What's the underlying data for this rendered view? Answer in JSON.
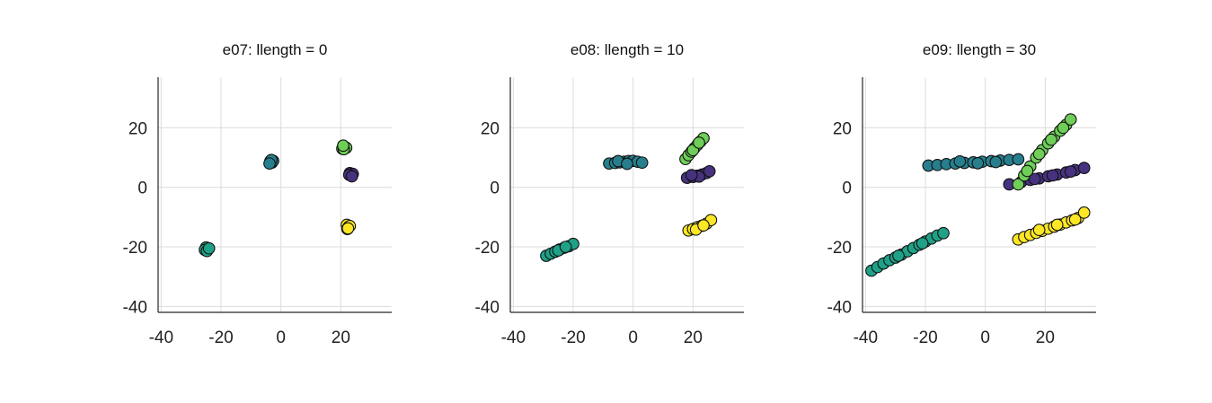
{
  "chart_data": [
    {
      "type": "scatter",
      "title": "e07: llength = 0",
      "xlabel": "",
      "ylabel": "",
      "xlim": [
        -41,
        37
      ],
      "ylim": [
        -42,
        37
      ],
      "xticks": [
        -40,
        -20,
        0,
        20
      ],
      "yticks": [
        -40,
        -20,
        0,
        20
      ],
      "grid": true,
      "series": [
        {
          "color": "#46327e",
          "x": [
            23.0,
            23.5,
            24.0,
            22.8,
            23.7
          ],
          "y": [
            4.8,
            4.0,
            4.5,
            4.2,
            3.7
          ]
        },
        {
          "color": "#277f8e",
          "x": [
            -3.5,
            -3.0,
            -2.6,
            -3.2,
            -3.8
          ],
          "y": [
            8.8,
            8.3,
            8.9,
            9.2,
            8.0
          ]
        },
        {
          "color": "#1fa187",
          "x": [
            -25.0,
            -24.3,
            -25.4,
            -24.7,
            -24.0
          ],
          "y": [
            -20.2,
            -20.8,
            -21.0,
            -21.4,
            -20.5
          ]
        },
        {
          "color": "#6ece58",
          "x": [
            20.5,
            21.2,
            21.8,
            21.0,
            20.8
          ],
          "y": [
            13.0,
            13.6,
            13.3,
            12.8,
            14.0
          ]
        },
        {
          "color": "#fde725",
          "x": [
            22.0,
            22.6,
            22.2,
            23.0,
            22.4
          ],
          "y": [
            -12.6,
            -13.3,
            -14.0,
            -13.0,
            -13.8
          ]
        }
      ]
    },
    {
      "type": "scatter",
      "title": "e08: llength = 10",
      "xlabel": "",
      "ylabel": "",
      "xlim": [
        -41,
        37
      ],
      "ylim": [
        -42,
        37
      ],
      "xticks": [
        -40,
        -20,
        0,
        20
      ],
      "yticks": [
        -40,
        -20,
        0,
        20
      ],
      "grid": true,
      "series": [
        {
          "color": "#46327e",
          "x": [
            18.0,
            20.0,
            21.5,
            23.0,
            24.5,
            25.5,
            22.0,
            19.5
          ],
          "y": [
            3.2,
            3.5,
            3.9,
            4.3,
            4.8,
            5.4,
            3.6,
            4.1
          ]
        },
        {
          "color": "#277f8e",
          "x": [
            -8.0,
            -6.0,
            -4.5,
            -3.0,
            -1.5,
            0.0,
            1.5,
            3.0,
            -5.0,
            -2.0
          ],
          "y": [
            8.0,
            8.2,
            8.4,
            8.6,
            8.8,
            8.9,
            8.6,
            8.3,
            8.8,
            7.9
          ]
        },
        {
          "color": "#1fa187",
          "x": [
            -29.0,
            -27.5,
            -26.0,
            -24.5,
            -23.0,
            -21.5,
            -20.0,
            -25.0,
            -22.5
          ],
          "y": [
            -23.0,
            -22.3,
            -21.6,
            -20.9,
            -20.3,
            -19.8,
            -19.0,
            -21.2,
            -20.0
          ]
        },
        {
          "color": "#6ece58",
          "x": [
            17.5,
            18.5,
            19.5,
            20.5,
            21.5,
            22.5,
            23.5,
            20.0,
            22.0
          ],
          "y": [
            9.5,
            10.8,
            12.0,
            13.2,
            14.3,
            15.4,
            16.5,
            12.5,
            15.0
          ]
        },
        {
          "color": "#fde725",
          "x": [
            18.5,
            20.0,
            21.5,
            23.0,
            24.5,
            26.0,
            21.0,
            23.5
          ],
          "y": [
            -14.5,
            -14.0,
            -13.4,
            -12.9,
            -12.2,
            -11.0,
            -14.2,
            -12.8
          ]
        }
      ]
    },
    {
      "type": "scatter",
      "title": "e09: llength = 30",
      "xlabel": "",
      "ylabel": "",
      "xlim": [
        -41,
        37
      ],
      "ylim": [
        -42,
        37
      ],
      "xticks": [
        -40,
        -20,
        0,
        20
      ],
      "yticks": [
        -40,
        -20,
        0,
        20
      ],
      "grid": true,
      "series": [
        {
          "color": "#46327e",
          "x": [
            8.0,
            12.0,
            15.0,
            18.0,
            21.0,
            24.0,
            27.0,
            30.0,
            33.0,
            16.5,
            22.5,
            28.5
          ],
          "y": [
            1.0,
            1.8,
            2.5,
            3.0,
            3.7,
            4.3,
            5.0,
            5.8,
            6.5,
            2.8,
            4.0,
            5.3
          ]
        },
        {
          "color": "#277f8e",
          "x": [
            -19.0,
            -16.0,
            -13.0,
            -10.0,
            -7.0,
            -4.0,
            -1.0,
            2.0,
            5.0,
            8.0,
            11.0,
            -8.5,
            -2.5,
            3.5
          ],
          "y": [
            7.3,
            7.5,
            7.8,
            8.0,
            8.2,
            8.4,
            8.6,
            8.8,
            9.0,
            9.2,
            9.4,
            8.7,
            8.1,
            8.5
          ]
        },
        {
          "color": "#1fa187",
          "x": [
            -38.0,
            -36.0,
            -34.0,
            -32.0,
            -30.0,
            -28.0,
            -26.0,
            -24.0,
            -22.0,
            -20.0,
            -18.0,
            -16.0,
            -14.0,
            -29.0,
            -21.0
          ],
          "y": [
            -28.0,
            -26.8,
            -25.6,
            -24.5,
            -23.6,
            -22.6,
            -21.5,
            -20.4,
            -19.3,
            -18.2,
            -17.2,
            -16.2,
            -15.4,
            -23.0,
            -18.8
          ]
        },
        {
          "color": "#6ece58",
          "x": [
            11.0,
            13.0,
            15.0,
            17.0,
            19.0,
            21.0,
            23.0,
            25.0,
            27.0,
            28.5,
            14.0,
            18.0,
            22.0,
            26.0
          ],
          "y": [
            1.0,
            4.0,
            7.0,
            10.0,
            12.5,
            14.8,
            17.0,
            19.0,
            21.0,
            22.8,
            5.5,
            11.2,
            16.0,
            20.0
          ]
        },
        {
          "color": "#fde725",
          "x": [
            11.0,
            13.0,
            15.0,
            17.0,
            19.0,
            21.0,
            23.0,
            25.0,
            27.0,
            29.0,
            31.0,
            33.0,
            18.0,
            24.0,
            30.0
          ],
          "y": [
            -17.5,
            -16.7,
            -16.0,
            -15.3,
            -14.6,
            -13.9,
            -13.2,
            -12.5,
            -11.8,
            -11.1,
            -10.3,
            -8.5,
            -14.3,
            -12.6,
            -10.8
          ]
        }
      ]
    }
  ]
}
